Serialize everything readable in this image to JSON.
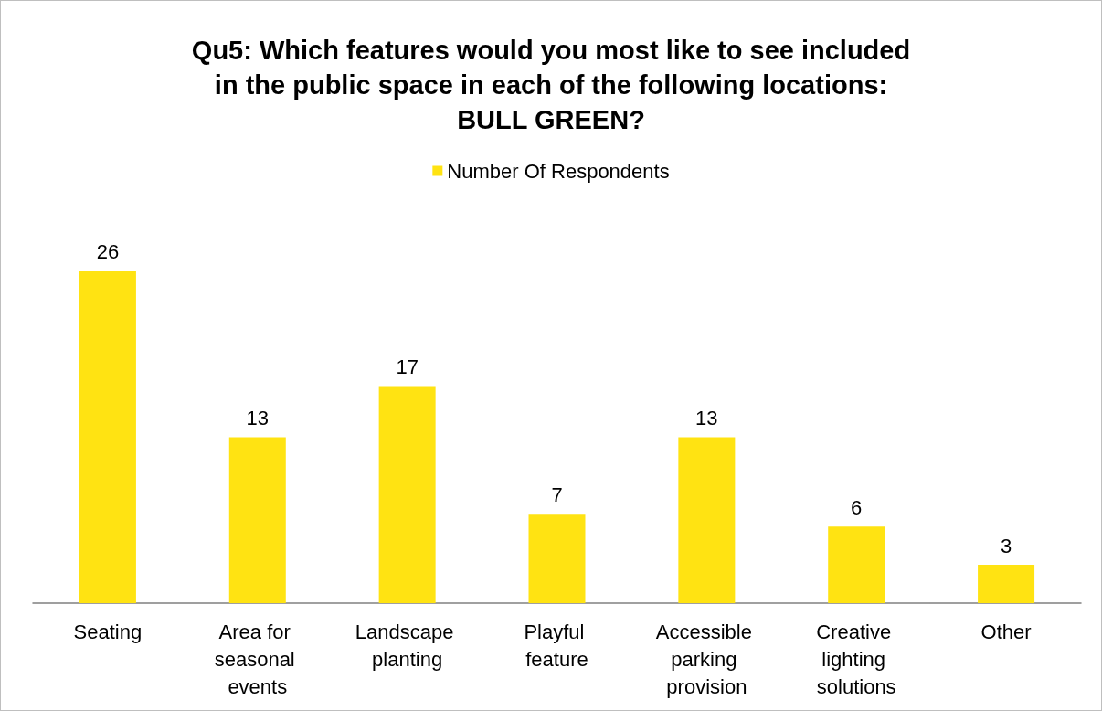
{
  "chart_data": {
    "type": "bar",
    "title": "Qu5: Which features would you most like to see included\nin the public space in each of the following locations:\nBULL GREEN?",
    "categories": [
      "Seating",
      "Area for seasonal events",
      "Landscape planting",
      "Playful feature",
      "Accessible parking provision",
      "Creative lighting solutions",
      "Other"
    ],
    "series": [
      {
        "name": "Number Of Respondents",
        "color": "#ffe312",
        "values": [
          26,
          13,
          17,
          7,
          13,
          6,
          3
        ]
      }
    ],
    "data_labels": true,
    "legend": "top",
    "grid": false
  }
}
